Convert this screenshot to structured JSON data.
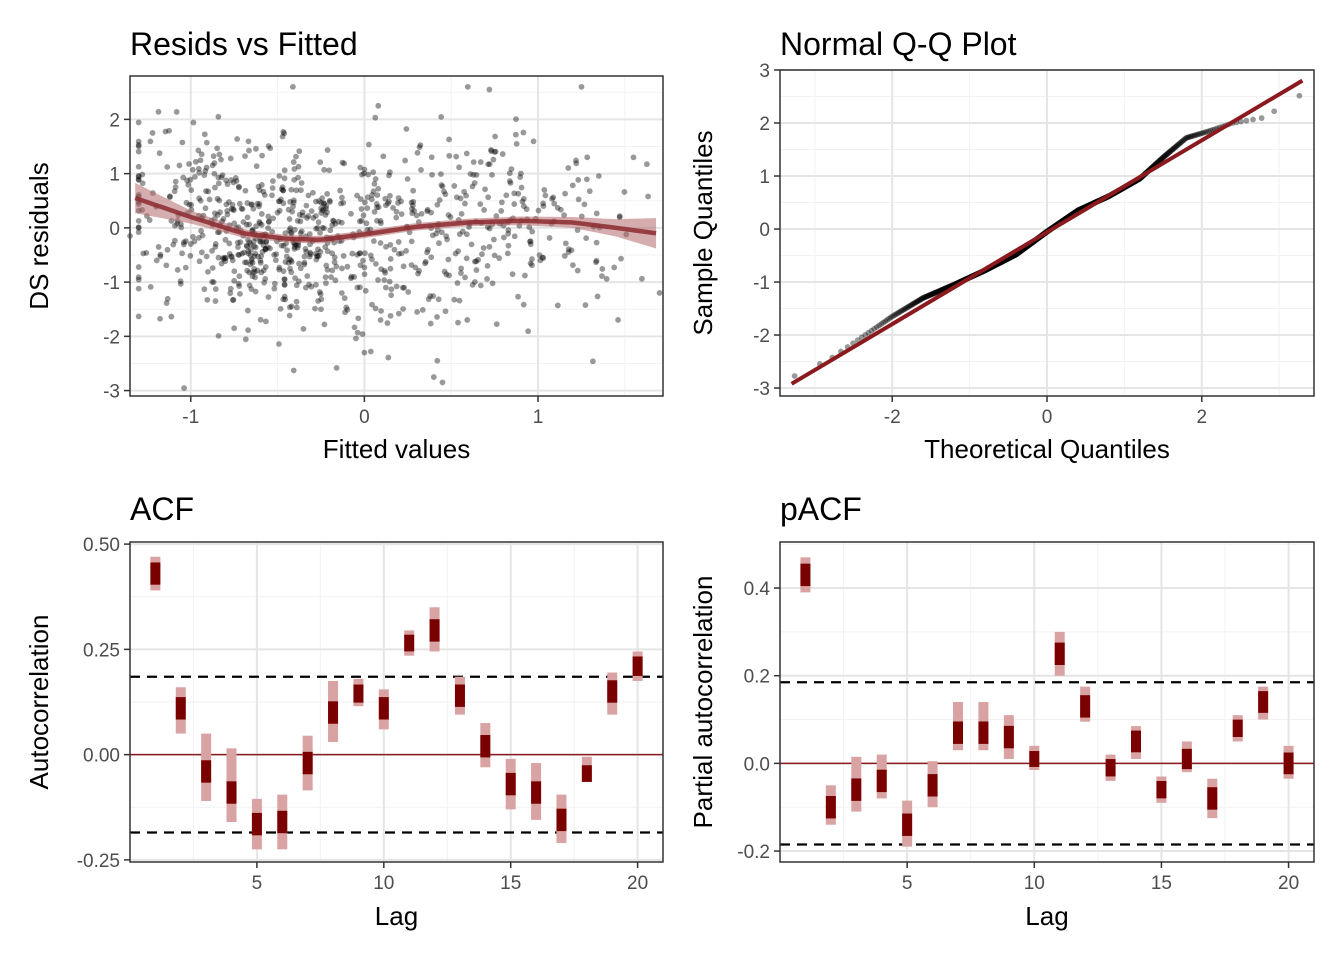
{
  "chart_data": [
    {
      "type": "scatter",
      "title": "Resids vs Fitted",
      "xlabel": "Fitted values",
      "ylabel": "DS residuals",
      "xlim": [
        -1.35,
        1.72
      ],
      "ylim": [
        -3.1,
        2.8
      ],
      "xticks": [
        "-1",
        "0",
        "1"
      ],
      "xtick_values": [
        -1,
        0,
        1
      ],
      "yticks": [
        "-3",
        "-2",
        "-1",
        "0",
        "1",
        "2"
      ],
      "ytick_values": [
        -3,
        -2,
        -1,
        0,
        1,
        2
      ],
      "grid": true,
      "point_color": "#000000",
      "point_alpha": 0.4,
      "n_points": 900,
      "smooth": {
        "color": "#8b2a2f",
        "band_color": "#b56a6d",
        "x": [
          -1.32,
          -1.0,
          -0.7,
          -0.45,
          -0.25,
          0.0,
          0.3,
          0.6,
          0.9,
          1.2,
          1.45,
          1.68
        ],
        "y": [
          0.55,
          0.2,
          -0.1,
          -0.2,
          -0.22,
          -0.12,
          0.02,
          0.1,
          0.13,
          0.1,
          0.0,
          -0.1
        ],
        "band_halfwidth": [
          0.28,
          0.12,
          0.08,
          0.07,
          0.07,
          0.07,
          0.07,
          0.07,
          0.08,
          0.1,
          0.16,
          0.28
        ]
      },
      "points_sample": [
        {
          "x": 0.72,
          "y": 2.55
        },
        {
          "x": 0.08,
          "y": 2.25
        },
        {
          "x": -1.22,
          "y": 1.75
        },
        {
          "x": -0.25,
          "y": -1.5
        },
        {
          "x": 0.4,
          "y": -2.75
        },
        {
          "x": 0.45,
          "y": -2.85
        },
        {
          "x": 0.42,
          "y": -2.45
        },
        {
          "x": 1.7,
          "y": -1.2
        },
        {
          "x": -1.35,
          "y": -0.15
        },
        {
          "x": 1.55,
          "y": 1.3
        },
        {
          "x": -0.75,
          "y": -1.85
        },
        {
          "x": 0.0,
          "y": -2.3
        }
      ]
    },
    {
      "type": "scatter",
      "title": "Normal Q-Q Plot",
      "xlabel": "Theoretical Quantiles",
      "ylabel": "Sample Quantiles",
      "xlim": [
        -3.45,
        3.45
      ],
      "ylim": [
        -3.15,
        3.0
      ],
      "xticks": [
        "-2",
        "0",
        "2"
      ],
      "xtick_values": [
        -2,
        0,
        2
      ],
      "yticks": [
        "-3",
        "-2",
        "-1",
        "0",
        "1",
        "2",
        "3"
      ],
      "ytick_values": [
        -3,
        -2,
        -1,
        0,
        1,
        2,
        3
      ],
      "grid": true,
      "reference_line": {
        "color": "#8b1a1f",
        "x": [
          -3.3,
          3.3
        ],
        "y": [
          -2.92,
          2.8
        ]
      },
      "qq_curve": {
        "theoretical": [
          -3.3,
          -2.8,
          -2.4,
          -2.0,
          -1.6,
          -1.2,
          -0.8,
          -0.4,
          0.0,
          0.4,
          0.8,
          1.2,
          1.5,
          1.8,
          2.1,
          2.4,
          2.8,
          3.3
        ],
        "sample": [
          -2.8,
          -2.45,
          -2.05,
          -1.65,
          -1.3,
          -1.05,
          -0.78,
          -0.48,
          -0.05,
          0.35,
          0.62,
          0.95,
          1.35,
          1.72,
          1.85,
          2.0,
          2.1,
          2.55
        ]
      },
      "n_points": 900
    },
    {
      "type": "bar",
      "title": "ACF",
      "xlabel": "Lag",
      "ylabel": "Autocorrelation",
      "xlim": [
        0.0,
        21.0
      ],
      "ylim": [
        -0.255,
        0.505
      ],
      "xticks": [
        "5",
        "10",
        "15",
        "20"
      ],
      "xtick_values": [
        5,
        10,
        15,
        20
      ],
      "yticks": [
        "-0.25",
        "0.00",
        "0.25",
        "0.50"
      ],
      "ytick_values": [
        -0.25,
        0.0,
        0.25,
        0.5
      ],
      "grid": true,
      "significance_bounds": [
        0.185,
        -0.185
      ],
      "zero_line_color": "#8b1a1f",
      "bar_color": "#7a0000",
      "interval_color": "#d9a3a3",
      "lags": [
        1,
        2,
        3,
        4,
        5,
        6,
        7,
        8,
        9,
        10,
        11,
        12,
        13,
        14,
        15,
        16,
        17,
        18,
        19,
        20
      ],
      "values": [
        0.43,
        0.11,
        -0.04,
        -0.09,
        -0.165,
        -0.16,
        -0.02,
        0.1,
        0.145,
        0.11,
        0.265,
        0.295,
        0.14,
        0.02,
        -0.07,
        -0.09,
        -0.155,
        -0.045,
        0.15,
        0.21
      ],
      "lower": [
        0.39,
        0.05,
        -0.11,
        -0.16,
        -0.225,
        -0.225,
        -0.085,
        0.03,
        0.115,
        0.06,
        0.235,
        0.245,
        0.095,
        -0.03,
        -0.13,
        -0.155,
        -0.21,
        -0.065,
        0.095,
        0.175
      ],
      "upper": [
        0.47,
        0.16,
        0.05,
        0.015,
        -0.105,
        -0.095,
        0.045,
        0.175,
        0.18,
        0.155,
        0.295,
        0.35,
        0.185,
        0.075,
        -0.01,
        -0.02,
        -0.095,
        -0.005,
        0.195,
        0.245
      ]
    },
    {
      "type": "bar",
      "title": "pACF",
      "xlabel": "Lag",
      "ylabel": "Partial autocorrelation",
      "xlim": [
        0.0,
        21.0
      ],
      "ylim": [
        -0.225,
        0.505
      ],
      "xticks": [
        "5",
        "10",
        "15",
        "20"
      ],
      "xtick_values": [
        5,
        10,
        15,
        20
      ],
      "yticks": [
        "-0.2",
        "0.0",
        "0.2",
        "0.4"
      ],
      "ytick_values": [
        -0.2,
        0.0,
        0.2,
        0.4
      ],
      "grid": true,
      "significance_bounds": [
        0.185,
        -0.185
      ],
      "zero_line_color": "#8b1a1f",
      "bar_color": "#7a0000",
      "interval_color": "#d9a3a3",
      "lags": [
        1,
        2,
        3,
        4,
        5,
        6,
        7,
        8,
        9,
        10,
        11,
        12,
        13,
        14,
        15,
        16,
        17,
        18,
        19,
        20
      ],
      "values": [
        0.43,
        -0.1,
        -0.06,
        -0.04,
        -0.14,
        -0.05,
        0.07,
        0.07,
        0.06,
        0.01,
        0.25,
        0.13,
        -0.01,
        0.05,
        -0.06,
        0.01,
        -0.08,
        0.08,
        0.14,
        0.0
      ],
      "lower": [
        0.39,
        -0.14,
        -0.11,
        -0.08,
        -0.19,
        -0.1,
        0.03,
        0.03,
        0.01,
        -0.015,
        0.2,
        0.095,
        -0.04,
        0.01,
        -0.09,
        -0.02,
        -0.125,
        0.05,
        0.1,
        -0.035
      ],
      "upper": [
        0.47,
        -0.05,
        0.015,
        0.02,
        -0.085,
        0.005,
        0.14,
        0.14,
        0.11,
        0.04,
        0.3,
        0.175,
        0.02,
        0.085,
        -0.03,
        0.05,
        -0.035,
        0.11,
        0.175,
        0.04
      ]
    }
  ]
}
